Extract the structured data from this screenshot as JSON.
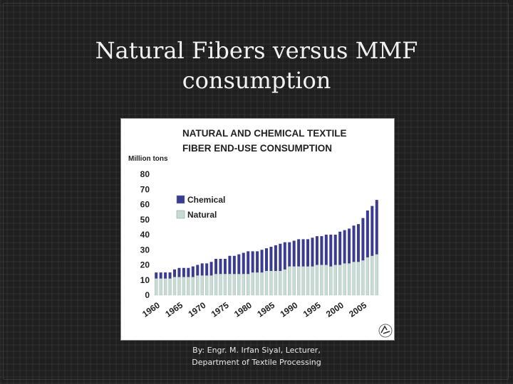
{
  "slide": {
    "title_line1": "Natural Fibers versus MMF",
    "title_line2": "consumption",
    "footer_line1": "By: Engr. M. Irfan Siyal, Lecturer,",
    "footer_line2": "Department of Textile Processing"
  },
  "chart_data": {
    "type": "bar",
    "stacked": true,
    "title_line1": "NATURAL AND CHEMICAL TEXTILE",
    "title_line2": "FIBER END-USE CONSUMPTION",
    "ylabel": "Million tons",
    "ylim": [
      0,
      80
    ],
    "yticks": [
      0,
      10,
      20,
      30,
      40,
      50,
      60,
      70,
      80
    ],
    "xticks": [
      "1960",
      "1965",
      "1970",
      "1975",
      "1980",
      "1985",
      "1990",
      "1995",
      "2000",
      "2005"
    ],
    "x": [
      1960,
      1961,
      1962,
      1963,
      1964,
      1965,
      1966,
      1967,
      1968,
      1969,
      1970,
      1971,
      1972,
      1973,
      1974,
      1975,
      1976,
      1977,
      1978,
      1979,
      1980,
      1981,
      1982,
      1983,
      1984,
      1985,
      1986,
      1987,
      1988,
      1989,
      1990,
      1991,
      1992,
      1993,
      1994,
      1995,
      1996,
      1997,
      1998,
      1999,
      2000,
      2001,
      2002,
      2003,
      2004,
      2005,
      2006,
      2007,
      2008
    ],
    "series": [
      {
        "name": "Natural",
        "color": "#c7dbd4",
        "values": [
          11,
          11,
          11,
          11,
          12,
          12,
          12,
          12,
          12,
          13,
          13,
          13,
          13,
          14,
          14,
          14,
          14,
          14,
          14,
          14,
          14,
          15,
          15,
          15,
          16,
          16,
          16,
          16,
          17,
          19,
          19,
          19,
          19,
          19,
          19,
          20,
          20,
          20,
          19,
          20,
          20,
          21,
          21,
          22,
          22,
          23,
          25,
          26,
          27
        ]
      },
      {
        "name": "Chemical",
        "color": "#3b3c91",
        "values": [
          4,
          4,
          4,
          4,
          5,
          6,
          6,
          6,
          7,
          7,
          8,
          8,
          9,
          10,
          10,
          10,
          12,
          12,
          13,
          14,
          15,
          14,
          14,
          15,
          15,
          16,
          17,
          18,
          18,
          16,
          17,
          18,
          18,
          18,
          19,
          19,
          19,
          20,
          21,
          20,
          22,
          22,
          23,
          24,
          25,
          28,
          31,
          33,
          36
        ]
      }
    ],
    "legend": [
      "Chemical",
      "Natural"
    ],
    "legend_position": "top-left",
    "grid": false
  }
}
